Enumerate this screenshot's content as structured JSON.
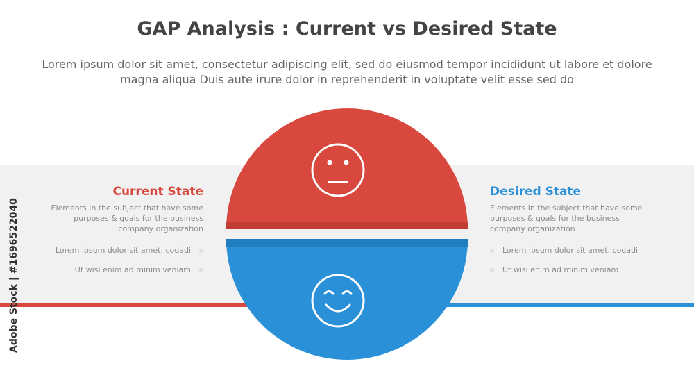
{
  "header": {
    "title": "GAP Analysis : Current vs Desired State",
    "subtitle": "Lorem ipsum dolor sit amet, consectetur adipiscing elit, sed do eiusmod tempor incididunt ut labore et dolore magna aliqua Duis aute irure dolor in reprehenderit in voluptate velit esse sed do"
  },
  "current": {
    "title": "Current State",
    "description": "Elements in the subject that have some purposes & goals  for the  business company organization",
    "bullets": [
      "Lorem ipsum dolor sit amet, codadi",
      "Ut wisi enim ad minim veniam"
    ],
    "color": "#d9483e",
    "icon": "neutral-face-icon"
  },
  "desired": {
    "title": "Desired State",
    "description": "Elements in the subject that have some purposes & goals  for the  business company organization",
    "bullets": [
      "Lorem ipsum dolor sit amet, codadi",
      "Ut wisi enim ad minim veniam"
    ],
    "color": "#2a90d8",
    "icon": "smiling-face-icon"
  },
  "watermark": "Adobe Stock | #1696522040"
}
